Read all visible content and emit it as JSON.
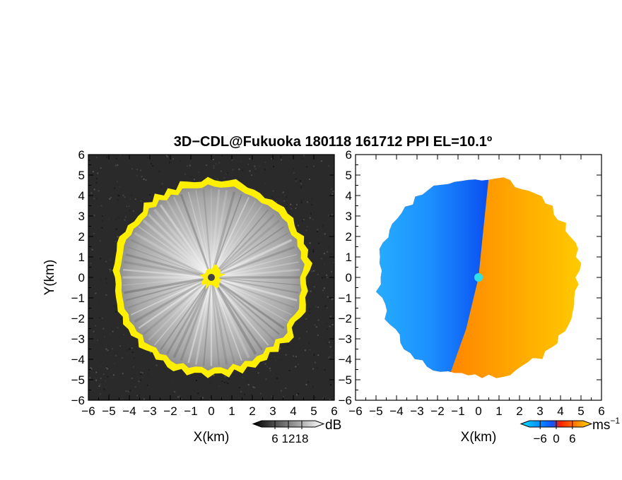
{
  "chart_data": {
    "type": "heatmap",
    "title": "3D−CDL@Fukuoka 180118 161712 PPI EL=10.1º",
    "panels": [
      {
        "name": "reflectivity",
        "xlabel": "X(km)",
        "ylabel": "Y(km)",
        "xlim": [
          -6,
          6
        ],
        "ylim": [
          -6,
          6
        ],
        "x_ticks": [
          "−6",
          "−5",
          "−4",
          "−3",
          "−2",
          "−1",
          "0",
          "1",
          "2",
          "3",
          "4",
          "5",
          "6"
        ],
        "y_ticks": [
          "6",
          "5",
          "4",
          "3",
          "2",
          "1",
          "0",
          "−1",
          "−2",
          "−3",
          "−4",
          "−5",
          "−6"
        ],
        "colorbar": {
          "unit": "dB",
          "tick_labels": [
            "6",
            "12",
            "18"
          ],
          "tick_values": [
            6,
            12,
            18
          ],
          "range": [
            0,
            24
          ],
          "colors": [
            "#000000",
            "#ffffff"
          ]
        },
        "background_color": "#2a2a2a",
        "edge_color": "#ffef00",
        "echo_radius_km": 4.7,
        "center_color": "#444444"
      },
      {
        "name": "doppler-velocity",
        "xlabel": "X(km)",
        "ylabel": "",
        "xlim": [
          -6,
          6
        ],
        "ylim": [
          -6,
          6
        ],
        "x_ticks": [
          "−6",
          "−5",
          "−4",
          "−3",
          "−2",
          "−1",
          "0",
          "1",
          "2",
          "3",
          "4",
          "5",
          "6"
        ],
        "y_ticks": [
          "6",
          "5",
          "4",
          "3",
          "2",
          "1",
          "0",
          "−1",
          "−2",
          "−3",
          "−4",
          "−5",
          "−6"
        ],
        "colorbar": {
          "unit": "ms",
          "unit_exp": "−1",
          "tick_labels": [
            "−6",
            "0",
            "6"
          ],
          "tick_values": [
            -6,
            0,
            6
          ],
          "range": [
            -10,
            10
          ],
          "colors": [
            "#00e0ff",
            "#1060ff",
            "#ff2000",
            "#ffe000"
          ]
        },
        "negative_color": "#1e9bff",
        "positive_color": "#ffa300",
        "center_color": "#30e0e8",
        "echo_radius_km": 4.9
      }
    ]
  }
}
